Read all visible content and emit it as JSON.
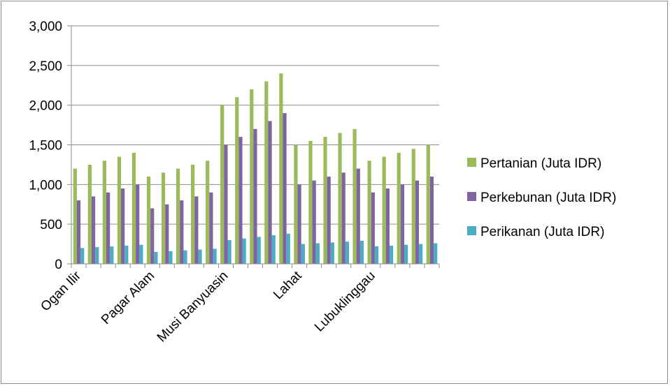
{
  "chart_data": {
    "type": "bar",
    "title": "",
    "xlabel": "",
    "ylabel": "",
    "ylim": [
      0,
      3000
    ],
    "yticks": [
      0,
      500,
      1000,
      1500,
      2000,
      2500,
      3000
    ],
    "ytick_labels": [
      "0",
      "500",
      "1,000",
      "1,500",
      "2,000",
      "2,500",
      "3,000"
    ],
    "grid": true,
    "legend_position": "right",
    "categories": [
      "Ogan Ilir",
      "",
      "",
      "",
      "",
      "Pagar Alam",
      "",
      "",
      "",
      "",
      "Musi Banyuasin",
      "",
      "",
      "",
      "",
      "Lahat",
      "",
      "",
      "",
      "",
      "Lubuklinggau",
      "",
      "",
      "",
      ""
    ],
    "series": [
      {
        "name": "Pertanian (Juta IDR)",
        "color": "#9bbb59",
        "values": [
          1200,
          1250,
          1300,
          1350,
          1400,
          1100,
          1150,
          1200,
          1250,
          1300,
          2000,
          2100,
          2200,
          2300,
          2400,
          1500,
          1550,
          1600,
          1650,
          1700,
          1300,
          1350,
          1400,
          1450,
          1500
        ]
      },
      {
        "name": "Perkebunan (Juta IDR)",
        "color": "#8064a2",
        "values": [
          800,
          850,
          900,
          950,
          1000,
          700,
          750,
          800,
          850,
          900,
          1500,
          1600,
          1700,
          1800,
          1900,
          1000,
          1050,
          1100,
          1150,
          1200,
          900,
          950,
          1000,
          1050,
          1100
        ]
      },
      {
        "name": "Perikanan (Juta IDR)",
        "color": "#4bacc6",
        "values": [
          200,
          210,
          220,
          230,
          240,
          150,
          160,
          170,
          180,
          190,
          300,
          320,
          340,
          360,
          380,
          250,
          260,
          270,
          280,
          290,
          220,
          230,
          240,
          250,
          260
        ]
      }
    ]
  }
}
